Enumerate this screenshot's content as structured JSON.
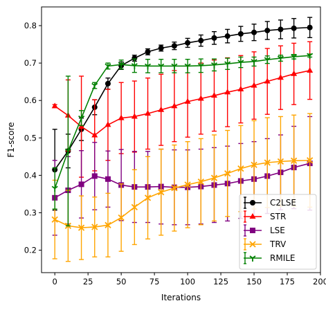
{
  "chart_data": {
    "type": "line",
    "xlabel": "Iterations",
    "ylabel": "F1-score",
    "xlim": [
      -10,
      200
    ],
    "ylim": [
      0.14,
      0.85
    ],
    "xticks": [
      0,
      25,
      50,
      75,
      100,
      125,
      150,
      175,
      200
    ],
    "yticks": [
      0.2,
      0.3,
      0.4,
      0.5,
      0.6,
      0.7,
      0.8
    ],
    "grid": false,
    "legend_position": "bottom-right",
    "x": [
      0,
      10,
      20,
      30,
      40,
      50,
      60,
      70,
      80,
      90,
      100,
      110,
      120,
      130,
      140,
      150,
      160,
      170,
      180,
      192
    ],
    "series": [
      {
        "name": "C2LSE",
        "color": "#000000",
        "marker": "circle",
        "values": [
          0.415,
          0.465,
          0.523,
          0.582,
          0.645,
          0.693,
          0.713,
          0.73,
          0.74,
          0.746,
          0.754,
          0.76,
          0.767,
          0.772,
          0.778,
          0.782,
          0.787,
          0.79,
          0.793,
          0.795
        ],
        "errors": [
          0.108,
          0.045,
          0.03,
          0.02,
          0.015,
          0.01,
          0.008,
          0.008,
          0.008,
          0.01,
          0.012,
          0.015,
          0.017,
          0.018,
          0.02,
          0.022,
          0.024,
          0.025,
          0.026,
          0.027
        ]
      },
      {
        "name": "STR",
        "color": "#ff0000",
        "marker": "triangle",
        "values": [
          0.585,
          0.56,
          0.53,
          0.507,
          0.535,
          0.553,
          0.557,
          0.565,
          0.575,
          0.585,
          0.597,
          0.605,
          0.613,
          0.622,
          0.63,
          0.64,
          0.651,
          0.661,
          0.671,
          0.68
        ],
        "errors": [
          0.004,
          0.095,
          0.135,
          0.095,
          0.095,
          0.095,
          0.095,
          0.095,
          0.095,
          0.095,
          0.095,
          0.095,
          0.095,
          0.092,
          0.09,
          0.09,
          0.088,
          0.085,
          0.082,
          0.077
        ]
      },
      {
        "name": "LSE",
        "color": "#800080",
        "marker": "square",
        "values": [
          0.34,
          0.36,
          0.376,
          0.398,
          0.39,
          0.374,
          0.369,
          0.369,
          0.37,
          0.368,
          0.368,
          0.37,
          0.374,
          0.378,
          0.385,
          0.39,
          0.398,
          0.408,
          0.421,
          0.432
        ],
        "errors": [
          0.1,
          0.09,
          0.09,
          0.09,
          0.075,
          0.095,
          0.095,
          0.095,
          0.1,
          0.1,
          0.1,
          0.1,
          0.1,
          0.1,
          0.1,
          0.1,
          0.1,
          0.1,
          0.11,
          0.125
        ]
      },
      {
        "name": "TRV",
        "color": "#ffa500",
        "marker": "x",
        "values": [
          0.282,
          0.265,
          0.26,
          0.262,
          0.267,
          0.287,
          0.315,
          0.34,
          0.355,
          0.366,
          0.375,
          0.383,
          0.393,
          0.405,
          0.418,
          0.428,
          0.434,
          0.437,
          0.439,
          0.44
        ],
        "errors": [
          0.105,
          0.095,
          0.085,
          0.08,
          0.085,
          0.09,
          0.1,
          0.11,
          0.115,
          0.115,
          0.115,
          0.115,
          0.115,
          0.115,
          0.115,
          0.118,
          0.12,
          0.12,
          0.122,
          0.125
        ]
      },
      {
        "name": "RMILE",
        "color": "#008000",
        "marker": "tri_down",
        "values": [
          0.365,
          0.465,
          0.553,
          0.64,
          0.692,
          0.696,
          0.693,
          0.692,
          0.692,
          0.692,
          0.692,
          0.693,
          0.695,
          0.698,
          0.702,
          0.704,
          0.709,
          0.713,
          0.717,
          0.72
        ],
        "errors": [
          0.055,
          0.2,
          0.02,
          0.008,
          0.008,
          0.012,
          0.018,
          0.018,
          0.018,
          0.018,
          0.018,
          0.018,
          0.016,
          0.015,
          0.014,
          0.012,
          0.01,
          0.008,
          0.006,
          0.004
        ]
      }
    ]
  }
}
